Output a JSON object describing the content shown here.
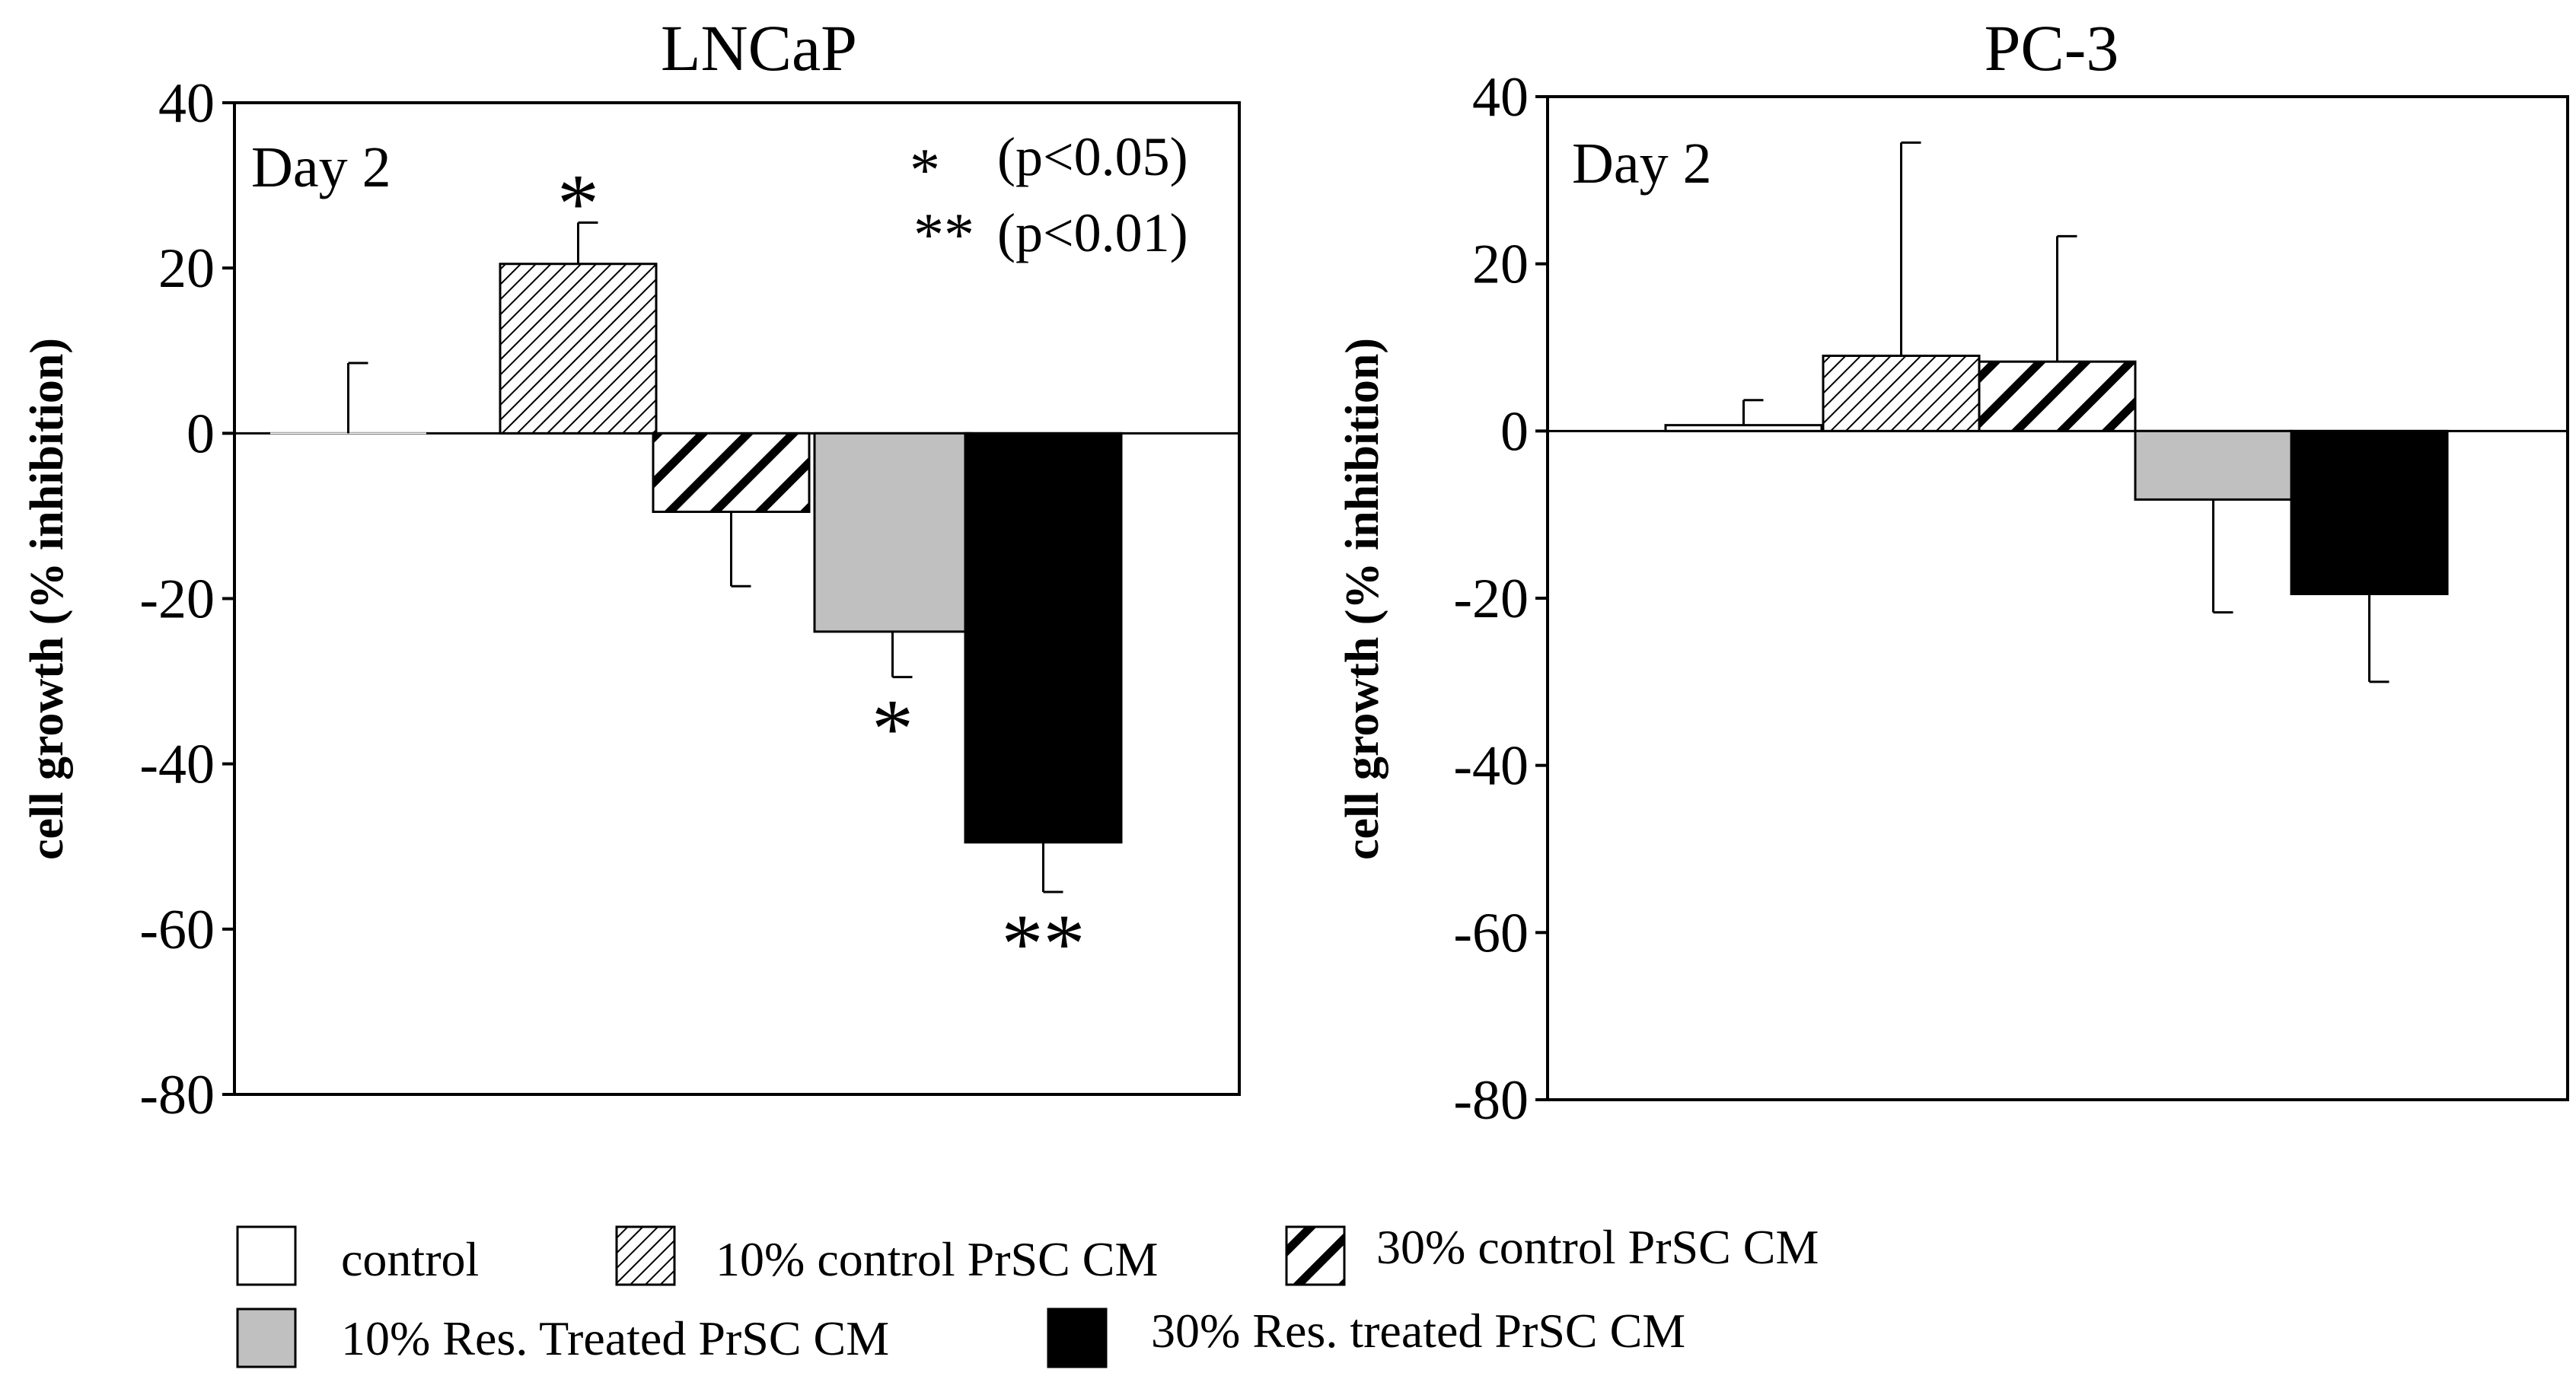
{
  "chart_data": [
    {
      "type": "bar",
      "title": "LNCaP",
      "ylabel": "cell growth (% inhibition)",
      "panel_label": "Day 2",
      "ylim": [
        -80,
        40
      ],
      "yticks": [
        "40",
        "20",
        "0",
        "-20",
        "-40",
        "-60",
        "-80"
      ],
      "categories": [
        "control",
        "10% control PrSC CM",
        "30% control PrSC CM",
        "10% Res. Treated PrSC CM",
        "30% Res. treated PrSC CM"
      ],
      "values": [
        0,
        20.5,
        -9.5,
        -24,
        -49.5
      ],
      "errors": [
        8.5,
        5,
        9,
        5.5,
        6
      ],
      "significance": [
        "",
        "*",
        "",
        "*",
        "**"
      ],
      "significance_legend": [
        {
          "mark": "*",
          "text": "(p<0.05)"
        },
        {
          "mark": "**",
          "text": "(p<0.01)"
        }
      ]
    },
    {
      "type": "bar",
      "title": "PC-3",
      "ylabel": "cell growth (% inhibition)",
      "panel_label": "Day 2",
      "ylim": [
        -80,
        40
      ],
      "yticks": [
        "40",
        "20",
        "0",
        "-20",
        "-40",
        "-60",
        "-80"
      ],
      "categories": [
        "control",
        "10% control PrSC CM",
        "30% control PrSC CM",
        "10% Res. Treated PrSC CM",
        "30% Res. treated PrSC CM"
      ],
      "values": [
        0.7,
        9,
        8.3,
        -8.2,
        -19.5
      ],
      "errors": [
        3,
        25.5,
        15,
        13.5,
        10.5
      ],
      "significance": [
        "",
        "",
        "",
        "",
        ""
      ]
    }
  ],
  "legend": [
    {
      "label": "control",
      "fill": "white"
    },
    {
      "label": "10% control PrSC CM",
      "fill": "fine-hatch"
    },
    {
      "label": "30% control PrSC CM",
      "fill": "bold-hatch"
    },
    {
      "label": "10% Res. Treated PrSC CM",
      "fill": "gray"
    },
    {
      "label": "30% Res. treated PrSC CM",
      "fill": "black"
    }
  ],
  "colors": {
    "gray": "#c0c0c0",
    "black": "#000000",
    "white": "#ffffff"
  }
}
